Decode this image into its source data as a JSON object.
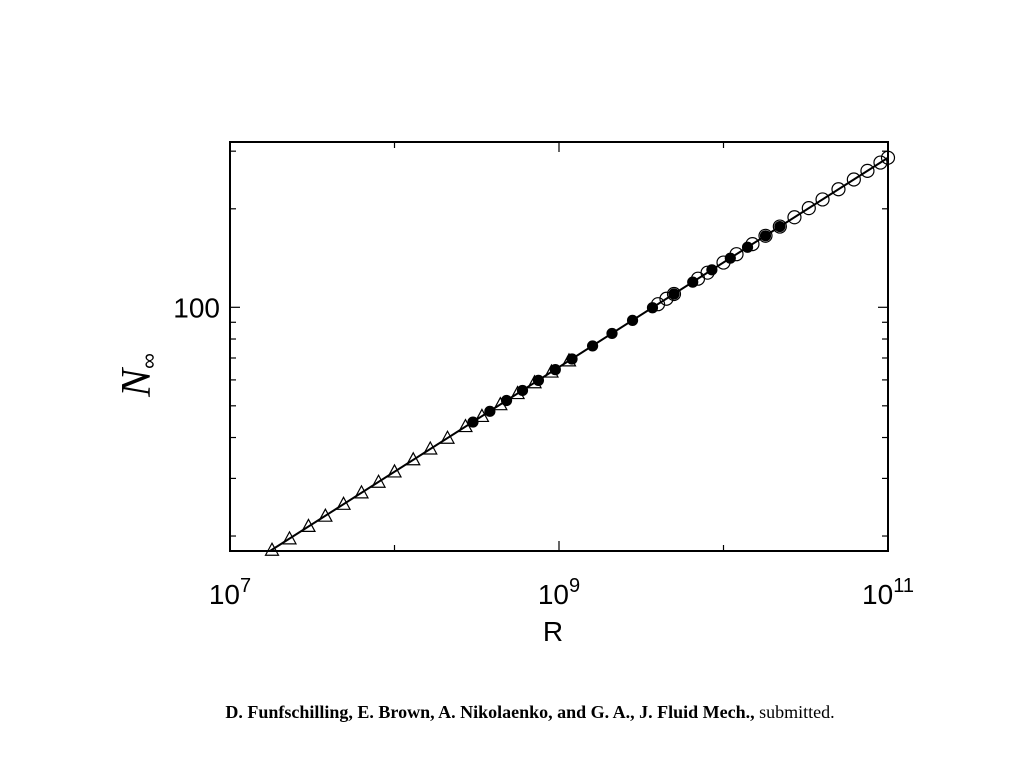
{
  "chart_data": {
    "type": "scatter",
    "log_x": true,
    "log_y": true,
    "xlabel": "R",
    "ylabel": "N",
    "ylabel_sub": "∞",
    "xlim": [
      10000000,
      100000000000
    ],
    "ylim": [
      18,
      320
    ],
    "xticks": [
      {
        "value": 10000000,
        "label": "10",
        "exponent": "7"
      },
      {
        "value": 1000000000,
        "label": "10",
        "exponent": "9"
      },
      {
        "value": 100000000000,
        "label": "10",
        "exponent": "11"
      }
    ],
    "xminorticks": [
      100000000,
      10000000000
    ],
    "yticks": [
      100
    ],
    "yminorticks": [
      20,
      30,
      40,
      50,
      60,
      70,
      80,
      90,
      200,
      300
    ],
    "color": "#000000",
    "series": [
      {
        "marker": "triangle-open",
        "x": [
          18000000,
          23000000,
          30000000,
          38000000,
          49000000,
          63000000,
          80000000,
          100000000,
          130000000,
          165000000,
          210000000,
          270000000,
          340000000,
          440000000,
          560000000,
          710000000,
          900000000,
          1150000000
        ],
        "values": [
          18.1,
          19.6,
          21.4,
          23.0,
          25.0,
          27.1,
          29.2,
          31.4,
          34.2,
          36.9,
          39.8,
          43.2,
          46.4,
          50.4,
          54.5,
          58.8,
          63.4,
          68.6
        ]
      },
      {
        "marker": "circle-filled",
        "x": [
          300000000,
          380000000,
          480000000,
          600000000,
          750000000,
          950000000,
          1200000000,
          1600000000,
          2100000000,
          2800000000,
          3700000000,
          5000000000,
          6500000000,
          8500000000,
          11000000000,
          14000000000,
          18000000000,
          22000000000
        ],
        "values": [
          44.6,
          48.1,
          51.9,
          55.7,
          59.8,
          64.5,
          69.5,
          76.2,
          83.2,
          91.2,
          99.7,
          109.8,
          119.4,
          130.2,
          141.3,
          152.6,
          165.4,
          176.5
        ]
      },
      {
        "marker": "circle-open",
        "x": [
          4000000000,
          4500000000,
          5000000000,
          7000000000,
          8000000000,
          10000000000,
          12000000000,
          15000000000,
          18000000000,
          22000000000,
          27000000000,
          33000000000,
          40000000000,
          50000000000,
          62000000000,
          75000000000,
          90000000000,
          100000000000
        ],
        "values": [
          102.2,
          106.2,
          109.8,
          122.3,
          127.6,
          137.0,
          145.3,
          156.0,
          165.4,
          176.5,
          188.4,
          200.9,
          213.6,
          229.5,
          245.8,
          261.2,
          276.9,
          286.4
        ]
      },
      {
        "marker": "line",
        "x": [
          17500000,
          100000000000
        ],
        "values": [
          18.0,
          286.4
        ]
      }
    ]
  },
  "citation": {
    "authors": "D. Funfschilling, E. Brown, A. Nikolaenko, and G. A., J. Fluid Mech.,",
    "status": "submitted."
  }
}
